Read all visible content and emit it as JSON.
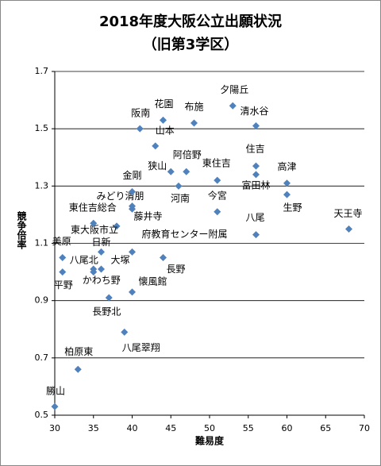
{
  "chart_data": {
    "type": "scatter",
    "title": "2018年度大阪公立出願状況",
    "subtitle": "（旧第3学区）",
    "x_label": "難易度",
    "y_label": "競争倍率",
    "color": "#4f81bd",
    "grid": true,
    "xlim": [
      30,
      70
    ],
    "xticks": [
      30,
      35,
      40,
      45,
      50,
      55,
      60,
      65,
      70
    ],
    "ylim": [
      0.5,
      1.7
    ],
    "yticks": [
      0.5,
      0.7,
      0.9,
      1.1,
      1.3,
      1.5,
      1.7
    ],
    "points": [
      {
        "label": "勝山",
        "x": 30,
        "y": 0.53
      },
      {
        "label": "柏原東",
        "x": 33,
        "y": 0.66
      },
      {
        "label": "八尾翠翔",
        "x": 39,
        "y": 0.79
      },
      {
        "label": "長野北",
        "x": 37,
        "y": 0.91
      },
      {
        "label": "懐風館",
        "x": 40,
        "y": 0.93
      },
      {
        "label": "平野",
        "x": 31,
        "y": 1.0
      },
      {
        "label": "かわち野",
        "x": 35,
        "y": 1.0
      },
      {
        "label": "八尾北",
        "x": 35,
        "y": 1.01
      },
      {
        "label": "大塚",
        "x": 36,
        "y": 1.01
      },
      {
        "label": "美原",
        "x": 31,
        "y": 1.05
      },
      {
        "label": "日新",
        "x": 36,
        "y": 1.07
      },
      {
        "label": "府教育センター附属",
        "x": 40,
        "y": 1.07
      },
      {
        "label": "長野",
        "x": 44,
        "y": 1.05
      },
      {
        "label": "東大阪市立",
        "x": 38,
        "y": 1.16
      },
      {
        "label": "東住吉総合",
        "x": 35,
        "y": 1.17
      },
      {
        "label": "藤井寺",
        "x": 40,
        "y": 1.22
      },
      {
        "label": "みどり清朋",
        "x": 40,
        "y": 1.23
      },
      {
        "label": "金剛",
        "x": 40,
        "y": 1.28
      },
      {
        "label": "河南",
        "x": 46,
        "y": 1.3
      },
      {
        "label": "狭山",
        "x": 45,
        "y": 1.35
      },
      {
        "label": "阿倍野",
        "x": 47,
        "y": 1.35
      },
      {
        "label": "東住吉",
        "x": 51,
        "y": 1.32
      },
      {
        "label": "今宮",
        "x": 51,
        "y": 1.21
      },
      {
        "label": "山本",
        "x": 43,
        "y": 1.44
      },
      {
        "label": "阪南",
        "x": 41,
        "y": 1.5
      },
      {
        "label": "花園",
        "x": 44,
        "y": 1.53
      },
      {
        "label": "布施",
        "x": 48,
        "y": 1.52
      },
      {
        "label": "夕陽丘",
        "x": 53,
        "y": 1.58
      },
      {
        "label": "清水谷",
        "x": 56,
        "y": 1.51
      },
      {
        "label": "住吉",
        "x": 56,
        "y": 1.37
      },
      {
        "label": "富田林",
        "x": 56,
        "y": 1.34
      },
      {
        "label": "八尾",
        "x": 56,
        "y": 1.13
      },
      {
        "label": "高津",
        "x": 60,
        "y": 1.31
      },
      {
        "label": "生野",
        "x": 60,
        "y": 1.27
      },
      {
        "label": "天王寺",
        "x": 68,
        "y": 1.15
      }
    ]
  }
}
